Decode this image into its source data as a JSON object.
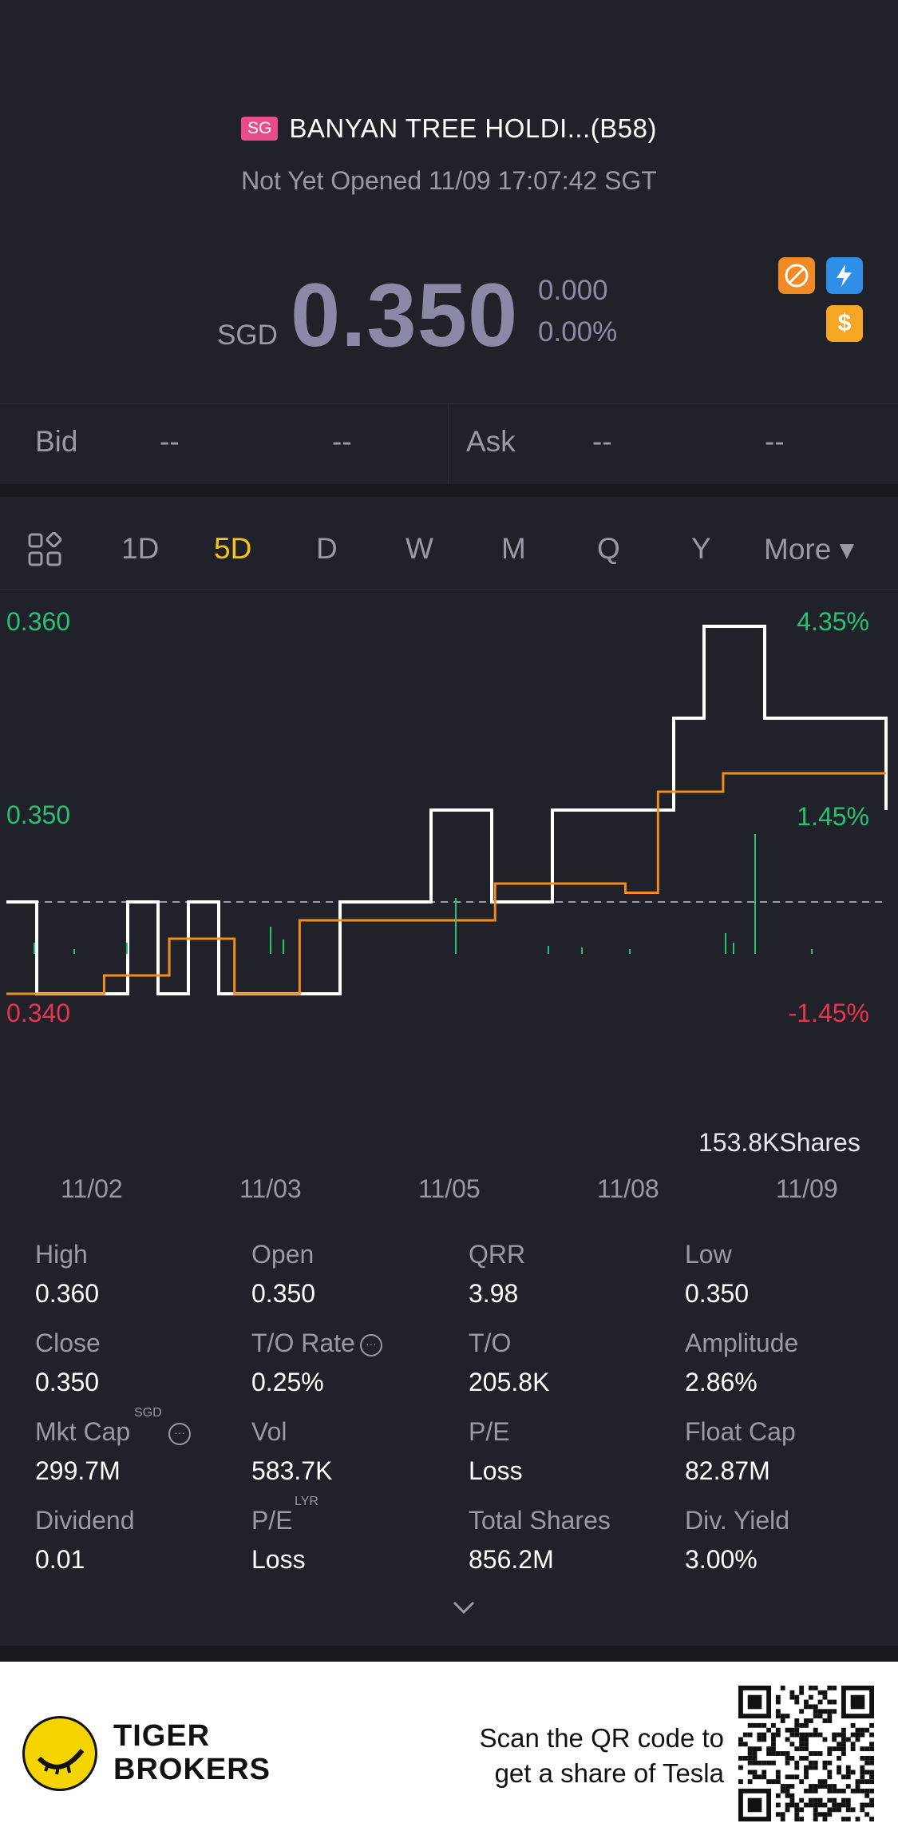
{
  "header": {
    "market_badge": "SG",
    "title": "BANYAN TREE HOLDI...(B58)",
    "status": "Not Yet Opened 11/09 17:07:42 SGT"
  },
  "quote": {
    "currency": "SGD",
    "price": "0.350",
    "change": "0.000",
    "change_pct": "0.00%",
    "badges": [
      "no-short-icon",
      "flash-icon",
      "dollar-icon"
    ]
  },
  "bidask": {
    "bid_label": "Bid",
    "bid_price": "--",
    "bid_size": "--",
    "ask_label": "Ask",
    "ask_price": "--",
    "ask_size": "--"
  },
  "tabs": {
    "items": [
      "1D",
      "5D",
      "D",
      "W",
      "M",
      "Q",
      "Y",
      "More ▾"
    ],
    "active": "5D"
  },
  "chart_data": {
    "type": "line",
    "x_labels": [
      "11/02",
      "11/03",
      "11/05",
      "11/08",
      "11/09"
    ],
    "y_left_labels": [
      "0.360",
      "0.350",
      "0.340"
    ],
    "y_right_labels": [
      "4.35%",
      "1.45%",
      "-1.45%"
    ],
    "ylim": [
      0.34,
      0.36
    ],
    "prev_close": 0.345,
    "series": [
      {
        "color": "#ffffff",
        "values": [
          0.345,
          0.34,
          0.34,
          0.34,
          0.345,
          0.34,
          0.345,
          0.34,
          0.34,
          0.34,
          0.34,
          0.345,
          0.345,
          0.345,
          0.35,
          0.35,
          0.345,
          0.345,
          0.35,
          0.35,
          0.35,
          0.35,
          0.355,
          0.36,
          0.36,
          0.355,
          0.355,
          0.355,
          0.355,
          0.35
        ]
      },
      {
        "color": "#f28c1c",
        "values": [
          0.34,
          0.34,
          0.34,
          0.341,
          0.341,
          0.343,
          0.343,
          0.34,
          0.34,
          0.344,
          0.344,
          0.344,
          0.344,
          0.344,
          0.344,
          0.346,
          0.346,
          0.346,
          0.346,
          0.3455,
          0.351,
          0.351,
          0.352,
          0.352,
          0.352,
          0.352,
          0.352,
          0.352
        ]
      }
    ],
    "volume_label": "153.8KShares"
  },
  "stats": {
    "high_k": "High",
    "high_v": "0.360",
    "open_k": "Open",
    "open_v": "0.350",
    "qrr_k": "QRR",
    "qrr_v": "3.98",
    "low_k": "Low",
    "low_v": "0.350",
    "close_k": "Close",
    "close_v": "0.350",
    "to_rate_k": "T/O Rate",
    "to_rate_v": "0.25%",
    "to_k": "T/O",
    "to_v": "205.8K",
    "amp_k": "Amplitude",
    "amp_v": "2.86%",
    "mktcap_k": "Mkt Cap",
    "mktcap_sup": "SGD",
    "mktcap_v": "299.7M",
    "vol_k": "Vol",
    "vol_v": "583.7K",
    "pe_k": "P/E",
    "pe_v": "Loss",
    "floatcap_k": "Float Cap",
    "floatcap_v": "82.87M",
    "div_k": "Dividend",
    "div_v": "0.01",
    "pelyr_k": "P/E",
    "pelyr_sup": "LYR",
    "pelyr_v": "Loss",
    "totalshares_k": "Total Shares",
    "totalshares_v": "856.2M",
    "divyield_k": "Div. Yield",
    "divyield_v": "3.00%"
  },
  "footer": {
    "brand_line1": "TIGER",
    "brand_line2": "BROKERS",
    "promo_line1": "Scan the QR code to",
    "promo_line2": "get a share of Tesla"
  }
}
